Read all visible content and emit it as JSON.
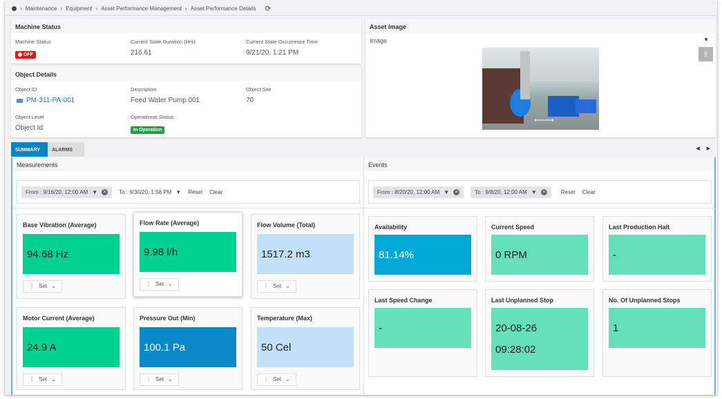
{
  "breadcrumb": {
    "items": [
      "Maintenance",
      "Equipment",
      "Asset Performance Management",
      "Asset Performance Details"
    ]
  },
  "machine_status": {
    "title": "Machine Status",
    "fields": [
      {
        "label": "Machine Status",
        "value": "OFF"
      },
      {
        "label": "Current State Duration (Hrs)",
        "value": "216.61"
      },
      {
        "label": "Current State Occurrence Time",
        "value": "9/21/20, 1:21 PM"
      }
    ]
  },
  "object_details": {
    "title": "Object Details",
    "object_id_label": "Object ID",
    "object_id": "PM-311-PA-001",
    "description_label": "Description",
    "description": "Feed Water Pump 001",
    "site_label": "Object Site",
    "site": "70",
    "level_label": "Object Level",
    "level": "Object Id",
    "op_status_label": "Operational Status",
    "op_status": "In Operation"
  },
  "asset_image": {
    "title": "Asset Image",
    "select": "Image"
  },
  "tabs": [
    {
      "label": "SUMMARY",
      "active": true
    },
    {
      "label": "ALARMS",
      "active": false
    }
  ],
  "measurements": {
    "title": "Measurements",
    "from": "From : 9/16/20, 12:00 AM",
    "to": "To : 9/30/20, 1:58 PM",
    "reset": "Reset",
    "clear": "Clear",
    "set_label": "Set",
    "cards": [
      {
        "title": "Base Vibration (Average)",
        "value": "94.68 Hz",
        "color": "#00d090"
      },
      {
        "title": "Flow Rate (Average)",
        "value": "9.98 l/h",
        "color": "#00d090"
      },
      {
        "title": "Flow Volume (Total)",
        "value": "1517.2 m3",
        "color": "#c2e0fa"
      },
      {
        "title": "Motor Current (Average)",
        "value": "24.9 A",
        "color": "#00d090"
      },
      {
        "title": "Pressure Out (Min)",
        "value": "100.1 Pa",
        "color": "#0a88c8"
      },
      {
        "title": "Temperature (Max)",
        "value": "50 Cel",
        "color": "#c2e0fa"
      }
    ]
  },
  "events": {
    "title": "Events",
    "from": "From : 8/20/20, 12:00 AM",
    "to": "To : 9/8/20, 12:00 AM",
    "reset": "Reset",
    "clear": "Clear",
    "cards": [
      {
        "title": "Availability",
        "value": "81.14%",
        "color": "#00a8d6"
      },
      {
        "title": "Current Speed",
        "value": "0 RPM",
        "color": "#66e0b8"
      },
      {
        "title": "Last Production Halt",
        "value": "-",
        "color": "#66e0b8"
      },
      {
        "title": "Last Speed Change",
        "value": "-",
        "color": "#66e0b8"
      },
      {
        "title": "Last Unplanned Stop",
        "value": "20-08-26",
        "value2": "09:28:02",
        "color": "#66e0b8"
      },
      {
        "title": "No. Of Unplanned Stops",
        "value": "1",
        "color": "#66e0b8"
      }
    ]
  }
}
